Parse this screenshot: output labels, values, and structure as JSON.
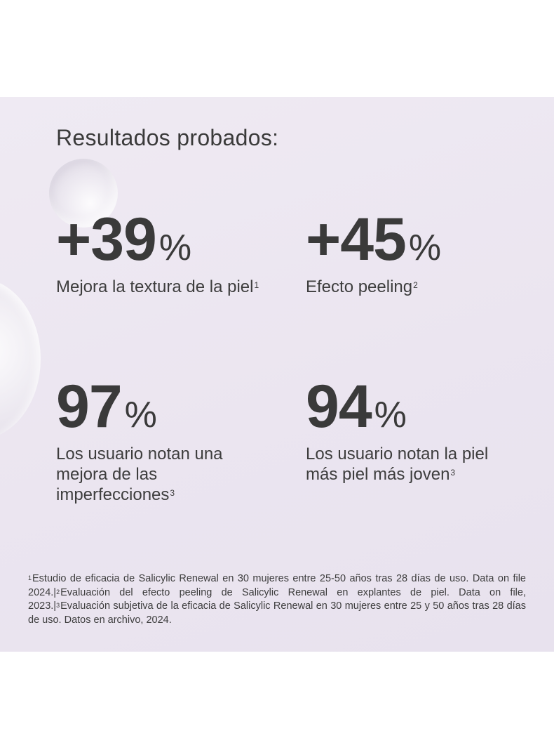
{
  "title": "Resultados probados:",
  "stats": [
    {
      "value": "+39",
      "unit": "%",
      "description": "Mejora la textura de la piel",
      "note": "1"
    },
    {
      "value": "+45",
      "unit": "%",
      "description": "Efecto peeling",
      "note": "2"
    },
    {
      "value": "97",
      "unit": "%",
      "description": "Los usuario notan una  mejora de las imperfecciones",
      "note": "3"
    },
    {
      "value": "94",
      "unit": "%",
      "description": "Los usuario notan la piel más piel más joven",
      "note": "3"
    }
  ],
  "footnotes": [
    {
      "marker": "1",
      "text": "Estudio de eficacia de Salicylic Renewal en 30 mujeres entre 25-50 años tras 28 días de uso. Data on file 2024.|"
    },
    {
      "marker": "2",
      "text": "Evaluación del efecto peeling de Salicylic Renewal en explantes de piel. Data on file, 2023.|"
    },
    {
      "marker": "3",
      "text": "Evaluación subjetiva de la eficacia de Salicylic Renewal en 30 mujeres entre 25 y 50 años tras 28 días de uso. Datos en archivo, 2024."
    }
  ],
  "colors": {
    "background": "#ece6f1",
    "text": "#3a3a3a"
  }
}
